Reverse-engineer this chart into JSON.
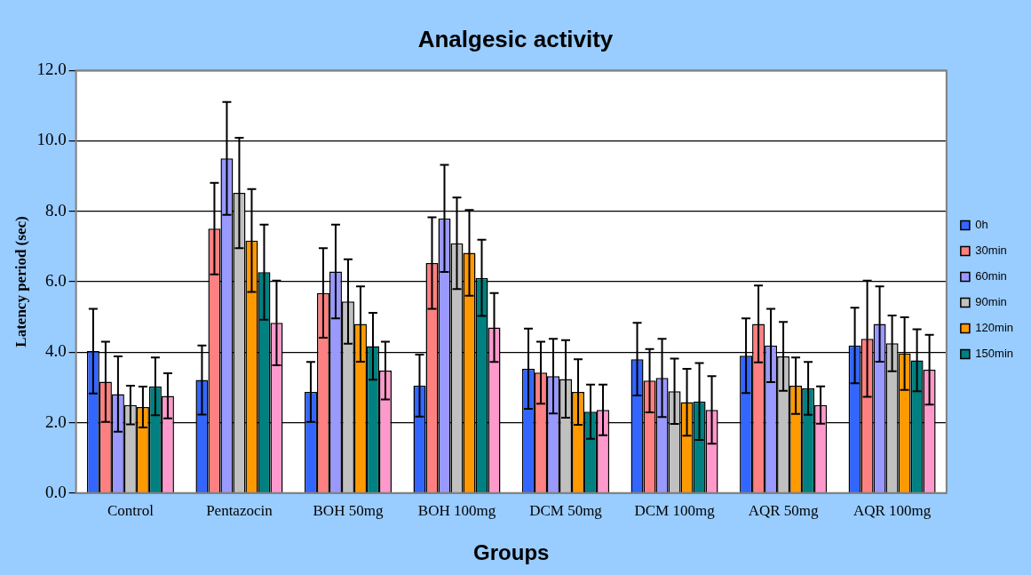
{
  "chart_data": {
    "type": "bar",
    "title": "Analgesic activity",
    "xlabel": "Groups",
    "ylabel": "Latency period (sec)",
    "categories": [
      "Control",
      "Pentazocin",
      "BOH 50mg",
      "BOH 100mg",
      "DCM 50mg",
      "DCM 100mg",
      "AQR 50mg",
      "AQR 100mg"
    ],
    "series": [
      {
        "name": "0h",
        "color": "#3366ff",
        "values": [
          4.03,
          3.21,
          2.87,
          3.05,
          3.53,
          3.8,
          3.9,
          4.19
        ],
        "errors": [
          1.2,
          0.98,
          0.85,
          0.88,
          1.14,
          1.03,
          1.06,
          1.07
        ]
      },
      {
        "name": "30min",
        "color": "#ff8080",
        "values": [
          3.16,
          7.51,
          5.68,
          6.53,
          3.42,
          3.19,
          4.8,
          4.38
        ],
        "errors": [
          1.14,
          1.3,
          1.27,
          1.3,
          0.88,
          0.9,
          1.09,
          1.65
        ]
      },
      {
        "name": "60min",
        "color": "#9999ff",
        "values": [
          2.81,
          9.5,
          6.29,
          7.8,
          3.32,
          3.27,
          4.19,
          4.8
        ],
        "errors": [
          1.07,
          1.6,
          1.33,
          1.52,
          1.06,
          1.11,
          1.04,
          1.07
        ]
      },
      {
        "name": "90min",
        "color": "#c0c0c0",
        "values": [
          2.5,
          8.52,
          5.44,
          7.09,
          3.24,
          2.89,
          3.88,
          4.25
        ],
        "errors": [
          0.55,
          1.57,
          1.2,
          1.3,
          1.1,
          0.93,
          0.98,
          0.79
        ]
      },
      {
        "name": "120min",
        "color": "#ff9900",
        "values": [
          2.44,
          7.17,
          4.8,
          6.82,
          2.87,
          2.58,
          3.05,
          3.96
        ],
        "errors": [
          0.58,
          1.46,
          1.07,
          1.22,
          0.93,
          0.95,
          0.8,
          1.03
        ]
      },
      {
        "name": "150min",
        "color": "#008080",
        "values": [
          3.03,
          6.27,
          4.17,
          6.11,
          2.31,
          2.6,
          2.97,
          3.77
        ],
        "errors": [
          0.82,
          1.35,
          0.95,
          1.08,
          0.77,
          1.09,
          0.75,
          0.88
        ]
      },
      {
        "color": "#ff99cc",
        "values": [
          2.76,
          4.83,
          3.48,
          4.7,
          2.36,
          2.36,
          2.5,
          3.5
        ],
        "errors": [
          0.64,
          1.2,
          0.82,
          0.98,
          0.72,
          0.96,
          0.53,
          0.99
        ]
      }
    ],
    "ylim": [
      0,
      12
    ],
    "yticks": [
      {
        "value": 0,
        "label": "0.0"
      },
      {
        "value": 2,
        "label": "2.0"
      },
      {
        "value": 4,
        "label": "4.0"
      },
      {
        "value": 6,
        "label": "6.0"
      },
      {
        "value": 8,
        "label": "8.0"
      },
      {
        "value": 10,
        "label": "10.0"
      },
      {
        "value": 12,
        "label": "12.0"
      }
    ],
    "grid": "y",
    "legend": "right"
  }
}
